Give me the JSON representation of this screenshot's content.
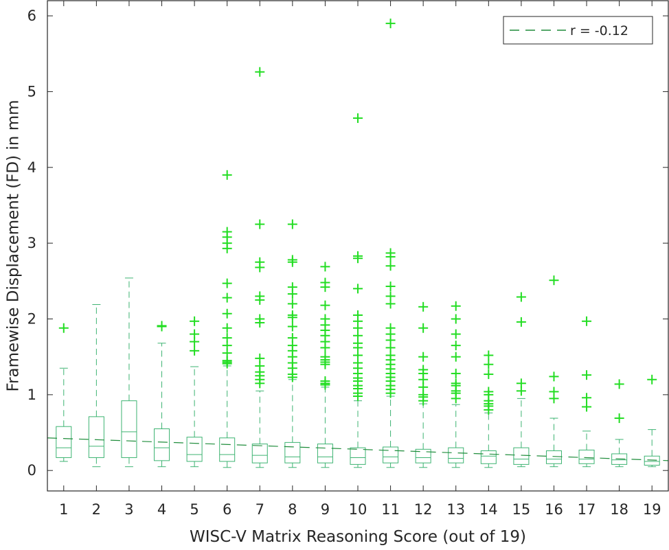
{
  "chart_data": {
    "type": "box",
    "title": "",
    "xlabel": "WISC-V Matrix Reasoning Score (out of 19)",
    "ylabel": "Framewise Displacement (FD) in mm",
    "xlim": [
      0.5,
      19.5
    ],
    "ylim": [
      -0.27,
      6.2
    ],
    "xticks": [
      1,
      2,
      3,
      4,
      5,
      6,
      7,
      8,
      9,
      10,
      11,
      12,
      13,
      14,
      15,
      16,
      17,
      18,
      19
    ],
    "yticks": [
      0,
      1,
      2,
      3,
      4,
      5,
      6
    ],
    "grid": false,
    "legend": {
      "location": "top-right",
      "entries": [
        "r = -0.12"
      ]
    },
    "colors": {
      "box": "#3cb371",
      "outlier": "#22dd22",
      "trend": "#1e8c3a",
      "axis": "#262626"
    },
    "boxes": [
      {
        "x": 1,
        "whisker_low": 0.12,
        "q1": 0.17,
        "median": 0.3,
        "q3": 0.58,
        "whisker_high": 1.35,
        "outliers": [
          1.88
        ]
      },
      {
        "x": 2,
        "whisker_low": 0.05,
        "q1": 0.17,
        "median": 0.32,
        "q3": 0.71,
        "whisker_high": 2.19,
        "outliers": []
      },
      {
        "x": 3,
        "whisker_low": 0.05,
        "q1": 0.17,
        "median": 0.51,
        "q3": 0.92,
        "whisker_high": 2.54,
        "outliers": []
      },
      {
        "x": 4,
        "whisker_low": 0.05,
        "q1": 0.13,
        "median": 0.3,
        "q3": 0.55,
        "whisker_high": 1.68,
        "outliers": [
          1.9,
          1.91
        ]
      },
      {
        "x": 5,
        "whisker_low": 0.05,
        "q1": 0.12,
        "median": 0.21,
        "q3": 0.44,
        "whisker_high": 1.37,
        "outliers": [
          1.58,
          1.7,
          1.8,
          1.97
        ]
      },
      {
        "x": 6,
        "whisker_low": 0.04,
        "q1": 0.12,
        "median": 0.21,
        "q3": 0.43,
        "whisker_high": 1.38,
        "outliers": [
          1.41,
          1.43,
          1.45,
          1.55,
          1.65,
          1.75,
          1.88,
          2.07,
          2.28,
          2.47,
          2.93,
          3.0,
          3.08,
          3.15,
          3.9
        ]
      },
      {
        "x": 7,
        "whisker_low": 0.04,
        "q1": 0.1,
        "median": 0.2,
        "q3": 0.35,
        "whisker_high": 1.05,
        "outliers": [
          1.15,
          1.2,
          1.25,
          1.3,
          1.38,
          1.48,
          1.95,
          2.0,
          2.25,
          2.3,
          2.68,
          2.75,
          3.25,
          5.26
        ]
      },
      {
        "x": 8,
        "whisker_low": 0.04,
        "q1": 0.1,
        "median": 0.18,
        "q3": 0.37,
        "whisker_high": 1.2,
        "outliers": [
          1.23,
          1.27,
          1.35,
          1.42,
          1.5,
          1.58,
          1.65,
          1.75,
          1.9,
          2.02,
          2.05,
          2.2,
          2.33,
          2.42,
          2.75,
          2.78,
          3.25
        ]
      },
      {
        "x": 9,
        "whisker_low": 0.04,
        "q1": 0.1,
        "median": 0.18,
        "q3": 0.35,
        "whisker_high": 1.1,
        "outliers": [
          1.13,
          1.15,
          1.18,
          1.4,
          1.43,
          1.46,
          1.5,
          1.62,
          1.7,
          1.78,
          1.85,
          1.92,
          2.0,
          2.18,
          2.42,
          2.48,
          2.69
        ]
      },
      {
        "x": 10,
        "whisker_low": 0.04,
        "q1": 0.08,
        "median": 0.17,
        "q3": 0.3,
        "whisker_high": 0.92,
        "outliers": [
          0.98,
          1.02,
          1.08,
          1.12,
          1.18,
          1.22,
          1.28,
          1.35,
          1.42,
          1.52,
          1.62,
          1.68,
          1.78,
          1.88,
          1.97,
          2.05,
          2.4,
          2.8,
          2.83,
          4.65
        ]
      },
      {
        "x": 11,
        "whisker_low": 0.04,
        "q1": 0.1,
        "median": 0.18,
        "q3": 0.31,
        "whisker_high": 0.98,
        "outliers": [
          1.02,
          1.07,
          1.12,
          1.18,
          1.23,
          1.28,
          1.34,
          1.4,
          1.46,
          1.52,
          1.62,
          1.72,
          1.8,
          1.88,
          2.2,
          2.3,
          2.43,
          2.7,
          2.82,
          2.87,
          5.9
        ]
      },
      {
        "x": 12,
        "whisker_low": 0.04,
        "q1": 0.1,
        "median": 0.17,
        "q3": 0.28,
        "whisker_high": 0.88,
        "outliers": [
          0.92,
          0.97,
          1.0,
          1.1,
          1.2,
          1.28,
          1.33,
          1.5,
          1.88,
          2.16
        ]
      },
      {
        "x": 13,
        "whisker_low": 0.04,
        "q1": 0.1,
        "median": 0.16,
        "q3": 0.3,
        "whisker_high": 0.87,
        "outliers": [
          0.95,
          1.02,
          1.05,
          1.12,
          1.15,
          1.28,
          1.5,
          1.65,
          1.8,
          2.0,
          2.17
        ]
      },
      {
        "x": 14,
        "whisker_low": 0.04,
        "q1": 0.09,
        "median": 0.19,
        "q3": 0.26,
        "whisker_high": 0.76,
        "outliers": [
          0.8,
          0.85,
          0.88,
          0.92,
          1.0,
          1.04,
          1.27,
          1.4,
          1.52
        ]
      },
      {
        "x": 15,
        "whisker_low": 0.05,
        "q1": 0.08,
        "median": 0.15,
        "q3": 0.3,
        "whisker_high": 0.95,
        "outliers": [
          1.05,
          1.15,
          1.96,
          2.29
        ]
      },
      {
        "x": 16,
        "whisker_low": 0.05,
        "q1": 0.09,
        "median": 0.15,
        "q3": 0.26,
        "whisker_high": 0.69,
        "outliers": [
          0.95,
          1.04,
          1.24,
          2.51
        ]
      },
      {
        "x": 17,
        "whisker_low": 0.05,
        "q1": 0.09,
        "median": 0.15,
        "q3": 0.27,
        "whisker_high": 0.52,
        "outliers": [
          0.84,
          0.96,
          1.26,
          1.97
        ]
      },
      {
        "x": 18,
        "whisker_low": 0.05,
        "q1": 0.08,
        "median": 0.14,
        "q3": 0.22,
        "whisker_high": 0.41,
        "outliers": [
          0.69,
          1.14
        ]
      },
      {
        "x": 19,
        "whisker_low": 0.05,
        "q1": 0.07,
        "median": 0.12,
        "q3": 0.19,
        "whisker_high": 0.54,
        "outliers": [
          1.2
        ]
      }
    ],
    "trend_line": {
      "name": "r = -0.12",
      "x": [
        0.5,
        19.5
      ],
      "y": [
        0.43,
        0.13
      ],
      "style": "dashed"
    }
  }
}
